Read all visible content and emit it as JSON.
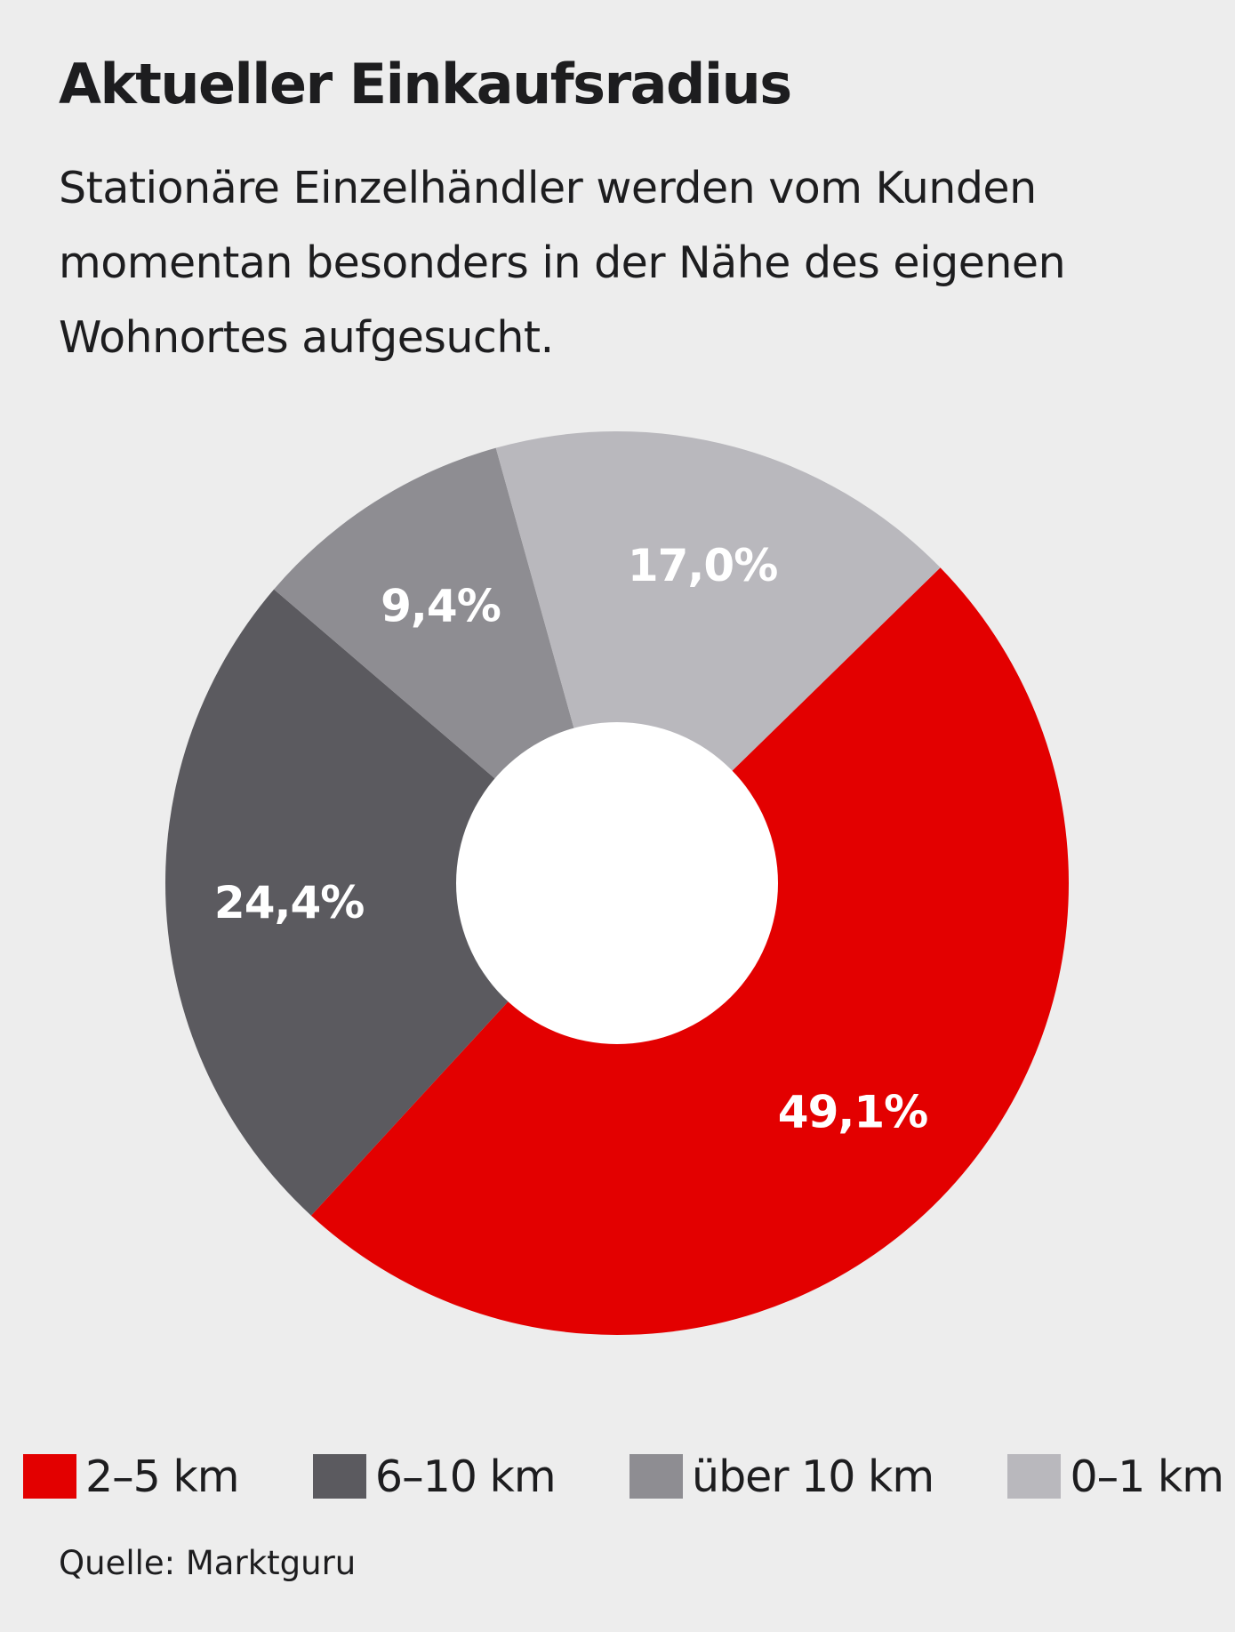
{
  "title": "Aktueller Einkaufsradius",
  "subtitle": "Stationäre Einzelhändler werden vom Kunden momentan besonders in der Nähe des eigenen Wohnortes aufgesucht.",
  "source": "Quelle: Marktguru",
  "chart_data": {
    "type": "pie",
    "style": "donut",
    "slices": [
      {
        "name": "2–5 km",
        "value": 49.1,
        "label": "49,1%",
        "color": "#e30000"
      },
      {
        "name": "6–10 km",
        "value": 24.4,
        "label": "24,4%",
        "color": "#5b5a5f"
      },
      {
        "name": "über 10 km",
        "value": 9.4,
        "label": "9,4%",
        "color": "#8e8d92"
      },
      {
        "name": "0–1 km",
        "value": 17.0,
        "label": "17,0%",
        "color": "#b9b8bd"
      }
    ],
    "legend_position": "bottom",
    "hole_color": "#ffffff",
    "background": "#ededed"
  }
}
